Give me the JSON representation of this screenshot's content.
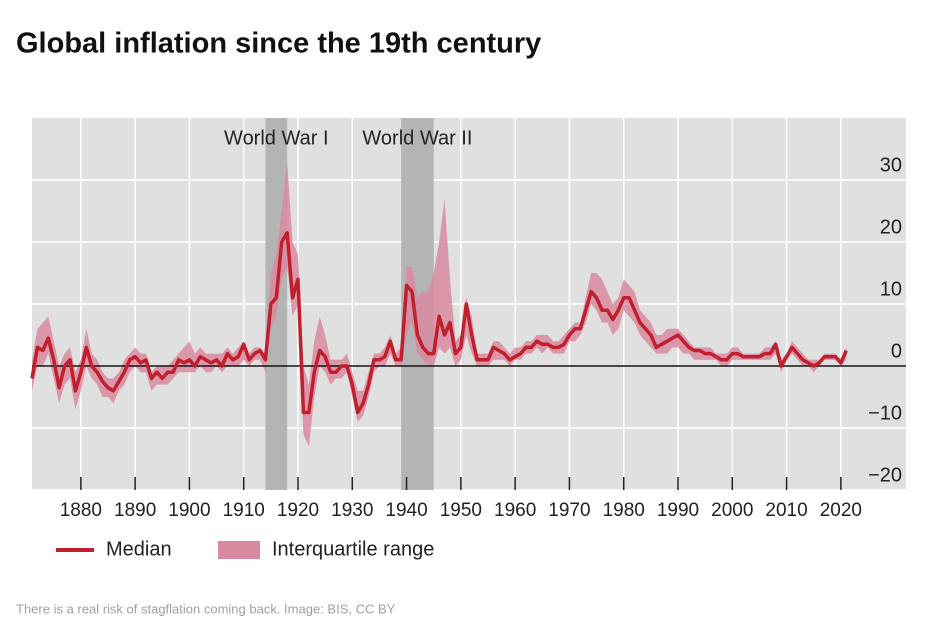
{
  "chart_data": {
    "type": "line",
    "title": "Global inflation since the 19th century",
    "caption": "There is a real risk of stagflation coming back. Image: BIS, CC BY",
    "xlim": [
      1871,
      2032
    ],
    "ylim": [
      -20,
      40
    ],
    "xticks": [
      1880,
      1890,
      1900,
      1910,
      1920,
      1930,
      1940,
      1950,
      1960,
      1970,
      1980,
      1990,
      2000,
      2010,
      2020
    ],
    "yticks": [
      {
        "value": -20,
        "label": "−20"
      },
      {
        "value": -10,
        "label": "−10"
      },
      0,
      10,
      20,
      30
    ],
    "grid": true,
    "annotations": [
      {
        "text": "World War I",
        "x": [
          1914,
          1918
        ]
      },
      {
        "text": "World War II",
        "x": [
          1939,
          1945
        ]
      }
    ],
    "x": [
      1871,
      1872,
      1873,
      1874,
      1875,
      1876,
      1877,
      1878,
      1879,
      1880,
      1881,
      1882,
      1883,
      1884,
      1885,
      1886,
      1887,
      1888,
      1889,
      1890,
      1891,
      1892,
      1893,
      1894,
      1895,
      1896,
      1897,
      1898,
      1899,
      1900,
      1901,
      1902,
      1903,
      1904,
      1905,
      1906,
      1907,
      1908,
      1909,
      1910,
      1911,
      1912,
      1913,
      1914,
      1915,
      1916,
      1917,
      1918,
      1919,
      1920,
      1921,
      1922,
      1923,
      1924,
      1925,
      1926,
      1927,
      1928,
      1929,
      1930,
      1931,
      1932,
      1933,
      1934,
      1935,
      1936,
      1937,
      1938,
      1939,
      1940,
      1941,
      1942,
      1943,
      1944,
      1945,
      1946,
      1947,
      1948,
      1949,
      1950,
      1951,
      1952,
      1953,
      1954,
      1955,
      1956,
      1957,
      1958,
      1959,
      1960,
      1961,
      1962,
      1963,
      1964,
      1965,
      1966,
      1967,
      1968,
      1969,
      1970,
      1971,
      1972,
      1973,
      1974,
      1975,
      1976,
      1977,
      1978,
      1979,
      1980,
      1981,
      1982,
      1983,
      1984,
      1985,
      1986,
      1987,
      1988,
      1989,
      1990,
      1991,
      1992,
      1993,
      1994,
      1995,
      1996,
      1997,
      1998,
      1999,
      2000,
      2001,
      2002,
      2003,
      2004,
      2005,
      2006,
      2007,
      2008,
      2009,
      2010,
      2011,
      2012,
      2013,
      2014,
      2015,
      2016,
      2017,
      2018,
      2019,
      2020,
      2021
    ],
    "series": [
      {
        "name": "Median",
        "color": "#c0202e",
        "values": [
          -2,
          3,
          2.5,
          4.5,
          1,
          -3.5,
          0,
          1,
          -4,
          -1,
          3,
          0,
          -1,
          -2.5,
          -3.5,
          -4,
          -2.5,
          -1,
          1,
          1.5,
          0.5,
          1,
          -2,
          -1,
          -2,
          -1,
          -1,
          1,
          0.5,
          1,
          0,
          1.5,
          1,
          0.5,
          1,
          0,
          2,
          1,
          1.5,
          3.5,
          1,
          2,
          2.5,
          1,
          10,
          11,
          20,
          21.5,
          11,
          14,
          -7.5,
          -7.5,
          -1,
          2.5,
          1.5,
          -1,
          -1,
          0,
          0,
          -3,
          -7.5,
          -6,
          -3,
          1,
          1,
          1.5,
          4,
          1,
          1,
          13,
          12,
          5,
          3,
          2,
          2,
          8,
          5,
          7,
          2,
          3,
          10,
          5,
          1,
          1,
          1,
          3,
          2.5,
          2,
          1,
          1.5,
          2,
          3,
          3,
          4,
          3.5,
          3.5,
          3,
          3,
          3.5,
          5,
          6,
          6,
          9,
          12,
          11,
          9,
          9,
          7.5,
          9,
          11,
          11,
          9,
          7,
          6,
          5,
          3,
          3.5,
          4,
          4.5,
          5,
          4,
          3,
          2.5,
          2.5,
          2,
          2,
          1.5,
          1,
          1,
          2,
          2,
          1.5,
          1.5,
          1.5,
          1.5,
          2,
          2,
          3.5,
          0,
          1.5,
          3,
          2,
          1,
          0.5,
          0,
          0.5,
          1.5,
          1.5,
          1.5,
          0.5,
          2.5
        ]
      },
      {
        "name": "Interquartile range",
        "color": "#d98aa0",
        "low": [
          -4,
          0,
          0,
          2,
          -2,
          -6,
          -3,
          -2,
          -7,
          -4,
          0,
          -2,
          -3,
          -5,
          -5,
          -6,
          -4,
          -3,
          -1,
          0,
          -1,
          -1,
          -4,
          -3,
          -3,
          -3,
          -2,
          -1,
          -1,
          -1,
          -1,
          0,
          -1,
          -1,
          0,
          -1,
          0,
          0,
          0,
          1,
          0,
          1,
          1,
          -1,
          6,
          8,
          14,
          16,
          8,
          10,
          -11,
          -13,
          -5,
          0,
          -1,
          -3,
          -2,
          -2,
          -1,
          -5,
          -9,
          -8,
          -5,
          -1,
          0,
          0,
          2,
          0,
          0,
          5,
          7,
          2,
          1,
          0,
          0,
          3,
          2,
          3,
          0,
          1,
          5,
          2,
          0,
          0,
          0,
          1,
          1,
          1,
          0,
          1,
          1,
          2,
          2,
          3,
          2,
          3,
          2,
          2,
          2,
          4,
          4,
          5,
          7,
          10,
          9,
          7,
          7,
          5,
          6,
          9,
          8,
          7,
          5,
          4,
          3,
          2,
          2,
          2,
          3,
          3,
          2,
          2,
          1,
          1,
          1,
          1,
          1,
          0,
          0,
          1,
          1,
          1,
          1,
          1,
          1,
          1,
          1,
          2,
          -1,
          1,
          2,
          1,
          0,
          0,
          -1,
          0,
          1,
          1,
          1,
          0,
          1
        ],
        "high": [
          1,
          6,
          7,
          8,
          4,
          0,
          2,
          3,
          -1,
          1,
          6,
          2,
          1,
          -1,
          -2,
          -2,
          -1,
          1,
          2,
          3,
          2,
          2,
          -1,
          0,
          0,
          0,
          1,
          2,
          3,
          4,
          2,
          3,
          2,
          2,
          2,
          2,
          3,
          2,
          3,
          4,
          2,
          3,
          3,
          2,
          15,
          18,
          25,
          33,
          20,
          18,
          0,
          -3,
          4,
          8,
          5,
          1,
          1,
          1,
          2,
          -1,
          -4,
          -4,
          -1,
          2,
          2,
          3,
          5,
          2,
          3,
          16,
          16,
          11,
          12,
          12,
          15,
          20,
          27,
          14,
          4,
          5,
          11,
          8,
          2,
          2,
          2,
          4,
          4,
          3,
          2,
          3,
          3,
          4,
          4,
          5,
          5,
          5,
          4,
          4,
          5,
          6,
          7,
          7,
          11,
          15,
          15,
          14,
          12,
          10,
          11,
          14,
          13,
          12,
          9,
          8,
          7,
          5,
          5,
          6,
          6,
          6,
          5,
          4,
          3,
          3,
          3,
          3,
          2,
          2,
          2,
          3,
          3,
          2,
          2,
          2,
          2,
          3,
          3,
          4,
          1,
          2,
          4,
          3,
          2,
          1,
          1,
          1,
          2,
          2,
          2,
          1,
          3
        ]
      }
    ]
  }
}
